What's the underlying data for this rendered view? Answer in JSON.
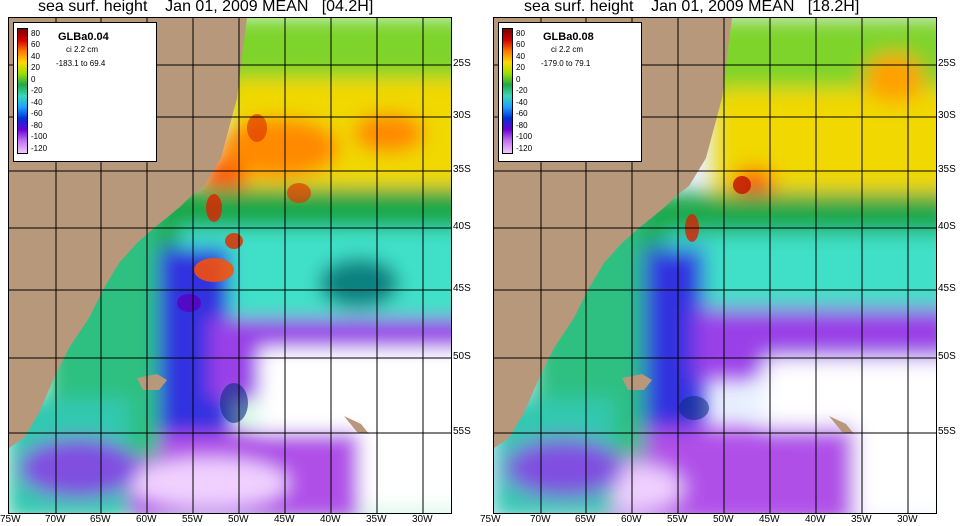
{
  "panels": [
    {
      "title": "sea surf. height    Jan 01, 2009 MEAN   [04.2H]",
      "model": "GLBa0.04",
      "ci": "ci 2.2 cm",
      "range": "-183.1 to 69.4"
    },
    {
      "title": "sea surf. height    Jan 01, 2009 MEAN   [18.2H]",
      "model": "GLBa0.08",
      "ci": "ci 2.2 cm",
      "range": "-179.0 to 79.1"
    }
  ],
  "colorbar": {
    "ticks": [
      "80",
      "60",
      "40",
      "20",
      "0",
      "-20",
      "-40",
      "-60",
      "-80",
      "-100",
      "-120"
    ],
    "colors": [
      "#7a0000",
      "#d40000",
      "#ff7a00",
      "#ffd800",
      "#9be000",
      "#1fa84a",
      "#38d8b8",
      "#1ea0ff",
      "#0030d8",
      "#6a00d8",
      "#c070f0",
      "#f4c8ff"
    ]
  },
  "lat_labels": [
    "25S",
    "30S",
    "35S",
    "40S",
    "45S",
    "50S",
    "55S"
  ],
  "lon_labels": [
    "75W",
    "70W",
    "65W",
    "60W",
    "55W",
    "50W",
    "45W",
    "40W",
    "35W",
    "30W"
  ],
  "land_color": "#b8987a"
}
